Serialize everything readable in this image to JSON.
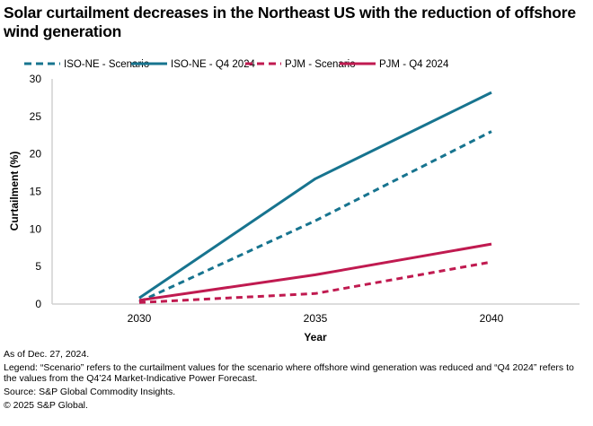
{
  "title": "Solar curtailment decreases in the Northeast US with the reduction of offshore wind generation",
  "colors": {
    "iso_ne": "#17748f",
    "pjm": "#c01a50",
    "axis": "#d0d0d0",
    "text": "#000000"
  },
  "chart_data": {
    "type": "line",
    "title": "Solar curtailment decreases in the Northeast US with the reduction of offshore wind generation",
    "xlabel": "Year",
    "ylabel": "Curtailment (%)",
    "x": [
      "2030",
      "2035",
      "2040"
    ],
    "ylim": [
      0,
      30
    ],
    "yticks": [
      0,
      5,
      10,
      15,
      20,
      25,
      30
    ],
    "grid": false,
    "legend_position": "top",
    "series": [
      {
        "name": "ISO-NE - Scenario",
        "color": "#17748f",
        "style": "dashed",
        "values": [
          0.3,
          11.1,
          23.0
        ]
      },
      {
        "name": "ISO-NE - Q4 2024",
        "color": "#17748f",
        "style": "solid",
        "values": [
          0.8,
          16.7,
          28.2
        ]
      },
      {
        "name": "PJM - Scenario",
        "color": "#c01a50",
        "style": "dashed",
        "values": [
          0.2,
          1.4,
          5.6
        ]
      },
      {
        "name": "PJM - Q4 2024",
        "color": "#c01a50",
        "style": "solid",
        "values": [
          0.5,
          3.9,
          8.0
        ]
      }
    ]
  },
  "notes": {
    "as_of": "As of Dec. 27, 2024.",
    "legend": "Legend: “Scenario” refers to the curtailment values for the scenario where offshore wind generation was reduced and “Q4 2024” refers to the values from the Q4’24 Market-Indicative Power Forecast.",
    "source": "Source: S&P Global Commodity Insights.",
    "copyright": "© 2025 S&P Global."
  }
}
